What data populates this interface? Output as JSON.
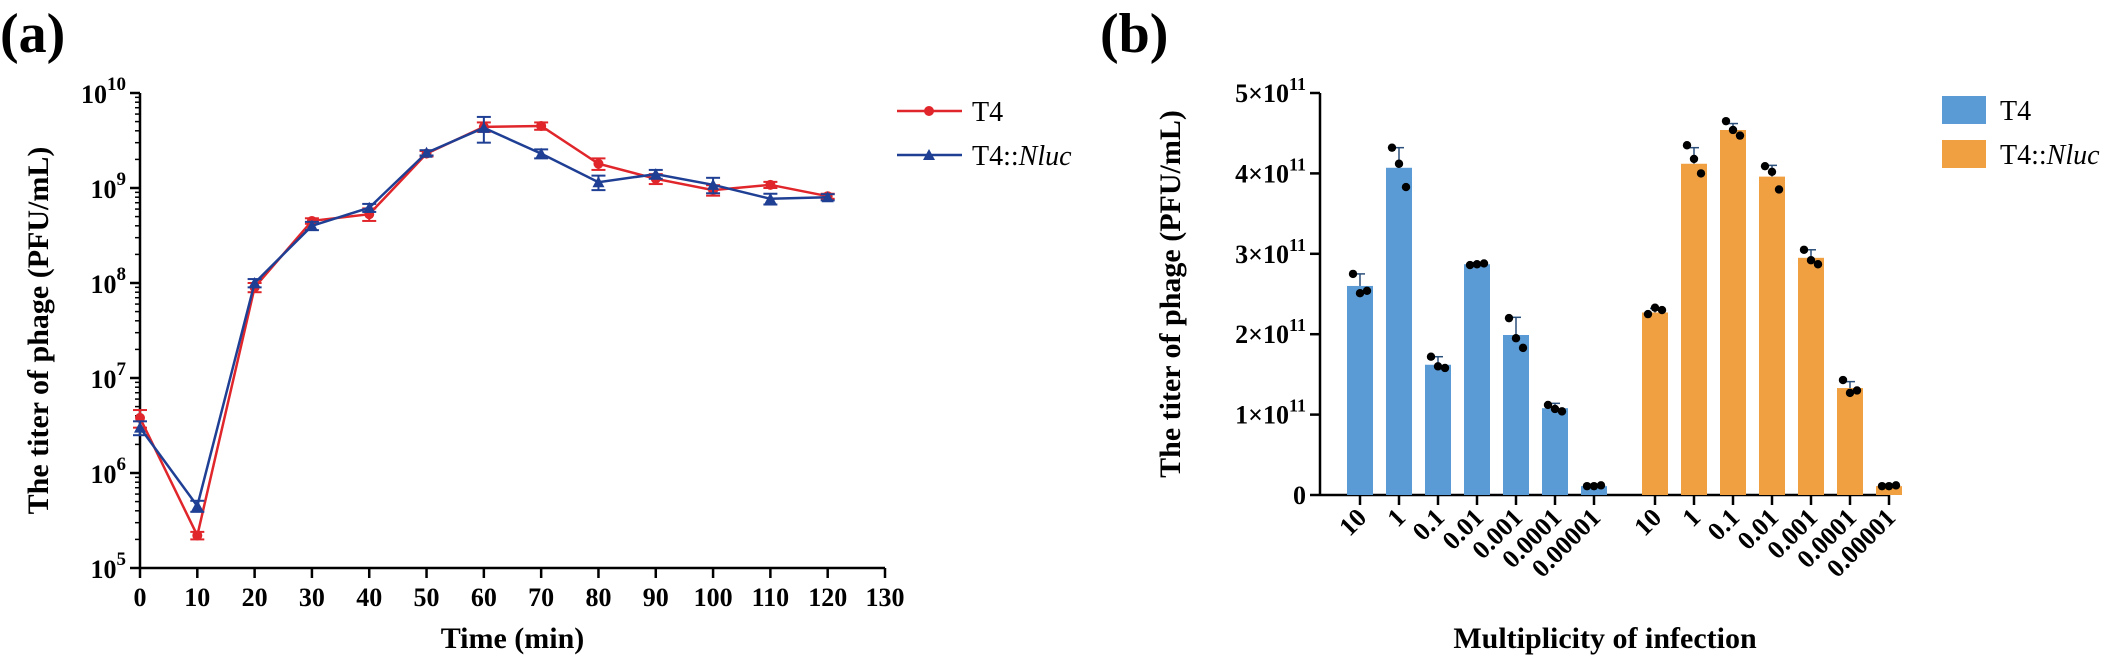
{
  "panels": [
    {
      "label": "(a)",
      "chart_data": {
        "type": "line",
        "xlabel": "Time (min)",
        "ylabel": "The titer of phage (PFU/mL)",
        "x_ticks": [
          0,
          10,
          20,
          30,
          40,
          50,
          60,
          70,
          80,
          90,
          100,
          110,
          120,
          130
        ],
        "xlim": [
          0,
          130
        ],
        "y_scale": "log",
        "ylim": [
          100000,
          10000000000
        ],
        "y_ticks": [
          {
            "base": "10",
            "exp": "10",
            "value": 10000000000
          },
          {
            "base": "10",
            "exp": "9",
            "value": 1000000000
          },
          {
            "base": "10",
            "exp": "8",
            "value": 100000000
          },
          {
            "base": "10",
            "exp": "7",
            "value": 10000000
          },
          {
            "base": "10",
            "exp": "6",
            "value": 1000000
          },
          {
            "base": "10",
            "exp": "5",
            "value": 100000
          }
        ],
        "legend_position": "top-right",
        "series": [
          {
            "name": "T4",
            "color": "#e0262b",
            "marker": "circle",
            "x": [
              0,
              10,
              20,
              30,
              40,
              50,
              60,
              70,
              80,
              90,
              100,
              110,
              120
            ],
            "y": [
              3800000,
              220000,
              90000000,
              450000000,
              530000000,
              2300000000,
              4400000000,
              4500000000,
              1800000000,
              1250000000,
              950000000,
              1080000000,
              820000000
            ],
            "err": [
              800000,
              20000,
              10000000,
              30000000,
              80000000,
              150000000,
              500000000,
              400000000,
              250000000,
              150000000,
              120000000,
              80000000,
              50000000
            ]
          },
          {
            "name": "T4::Nluc",
            "name_parts": [
              "T4::",
              "Nluc"
            ],
            "color": "#1f3f94",
            "marker": "triangle",
            "x": [
              0,
              10,
              20,
              30,
              40,
              50,
              60,
              70,
              80,
              90,
              100,
              110,
              120
            ],
            "y": [
              3000000,
              450000,
              100000000,
              400000000,
              620000000,
              2350000000,
              4300000000,
              2300000000,
              1150000000,
              1400000000,
              1080000000,
              770000000,
              800000000
            ],
            "err": [
              500000,
              60000,
              10000000,
              40000000,
              60000000,
              150000000,
              1300000000,
              250000000,
              200000000,
              150000000,
              200000000,
              100000000,
              60000000
            ]
          }
        ]
      }
    },
    {
      "label": "(b)",
      "chart_data": {
        "type": "bar",
        "xlabel": "Multiplicity of infection",
        "ylabel": "The titer of phage (PFU/mL)",
        "ylim": [
          0,
          500000000000
        ],
        "y_ticks": [
          {
            "text": "0",
            "value": 0
          },
          {
            "text": "1×10",
            "exp": "11",
            "value": 100000000000
          },
          {
            "text": "2×10",
            "exp": "11",
            "value": 200000000000
          },
          {
            "text": "3×10",
            "exp": "11",
            "value": 300000000000
          },
          {
            "text": "4×10",
            "exp": "11",
            "value": 400000000000
          },
          {
            "text": "5×10",
            "exp": "11",
            "value": 500000000000
          }
        ],
        "categories": [
          "10",
          "1",
          "0.1",
          "0.01",
          "0.001",
          "0.0001",
          "0.00001"
        ],
        "legend_position": "top-right",
        "series": [
          {
            "name": "T4",
            "color": "#5b9bd5",
            "values": [
              260000000000,
              407000000000,
              162000000000,
              287000000000,
              199000000000,
              108000000000,
              11000000000
            ],
            "err": [
              15000000000,
              25000000000,
              10000000000,
              2000000000,
              22000000000,
              6000000000,
              1000000000
            ],
            "points": [
              [
                275000000000,
                251000000000,
                254000000000
              ],
              [
                432000000000,
                412000000000,
                383000000000
              ],
              [
                172000000000,
                160000000000,
                158000000000
              ],
              [
                286000000000,
                287000000000,
                288000000000
              ],
              [
                220000000000,
                195000000000,
                183000000000
              ],
              [
                112000000000,
                107000000000,
                104000000000
              ],
              [
                11000000000,
                11000000000,
                12000000000
              ]
            ]
          },
          {
            "name": "T4::Nluc",
            "name_parts": [
              "T4::",
              "Nluc"
            ],
            "color": "#f0a040",
            "values": [
              227000000000,
              412000000000,
              454000000000,
              396000000000,
              295000000000,
              133000000000,
              11000000000
            ],
            "err": [
              5000000000,
              20000000000,
              8000000000,
              14000000000,
              10000000000,
              8000000000,
              1000000000
            ],
            "points": [
              [
                225000000000,
                233000000000,
                230000000000
              ],
              [
                435000000000,
                418000000000,
                400000000000
              ],
              [
                465000000000,
                454000000000,
                447000000000
              ],
              [
                409000000000,
                402000000000,
                380000000000
              ],
              [
                305000000000,
                292000000000,
                287000000000
              ],
              [
                143000000000,
                127000000000,
                130000000000
              ],
              [
                11000000000,
                11000000000,
                12000000000
              ]
            ]
          }
        ]
      }
    }
  ]
}
